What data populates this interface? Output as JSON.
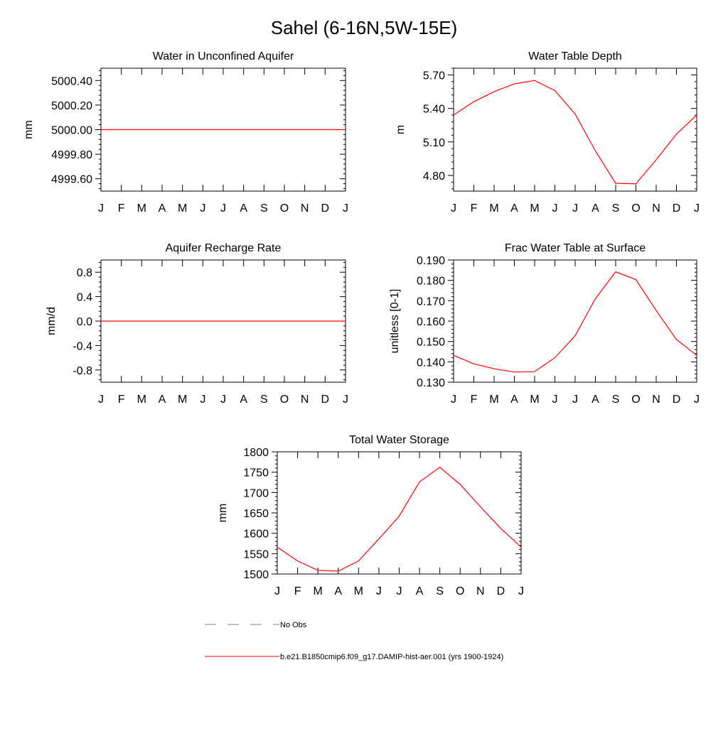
{
  "figure": {
    "title": "Sahel (6-16N,5W-15E)"
  },
  "legend": {
    "entries": [
      {
        "label": "No Obs",
        "style": "dashed",
        "color": "#808080"
      },
      {
        "label": "b.e21.B1850cmip6.f09_g17.DAMIP-hist-aer.001 (yrs 1900-1924)",
        "style": "solid",
        "color": "#ff0000"
      }
    ]
  },
  "chart_data": [
    {
      "type": "line",
      "title": "Water in Unconfined Aquifer",
      "ylabel": "mm",
      "xlabel": "",
      "categories": [
        "J",
        "F",
        "M",
        "A",
        "M",
        "J",
        "J",
        "A",
        "S",
        "O",
        "N",
        "D",
        "J"
      ],
      "ylim": [
        4999.5,
        5000.5
      ],
      "yticks": [
        4999.6,
        4999.8,
        5000.0,
        5000.2,
        5000.4
      ],
      "ytick_labels": [
        "4999.60",
        "4999.80",
        "5000.00",
        "5000.20",
        "5000.40"
      ],
      "series": [
        {
          "color": "#ff0000",
          "values": [
            5000.0,
            5000.0,
            5000.0,
            5000.0,
            5000.0,
            5000.0,
            5000.0,
            5000.0,
            5000.0,
            5000.0,
            5000.0,
            5000.0,
            5000.0
          ]
        }
      ]
    },
    {
      "type": "line",
      "title": "Water Table Depth",
      "ylabel": "m",
      "xlabel": "",
      "categories": [
        "J",
        "F",
        "M",
        "A",
        "M",
        "J",
        "J",
        "A",
        "S",
        "O",
        "N",
        "D",
        "J"
      ],
      "ylim": [
        4.66,
        5.76
      ],
      "yticks": [
        4.8,
        5.1,
        5.4,
        5.7
      ],
      "ytick_labels": [
        "4.80",
        "5.10",
        "5.40",
        "5.70"
      ],
      "series": [
        {
          "color": "#ff0000",
          "values": [
            5.34,
            5.46,
            5.55,
            5.62,
            5.65,
            5.56,
            5.35,
            5.02,
            4.73,
            4.725,
            4.94,
            5.17,
            5.34
          ]
        }
      ]
    },
    {
      "type": "line",
      "title": "Aquifer Recharge Rate",
      "ylabel": "mm/d",
      "xlabel": "",
      "categories": [
        "J",
        "F",
        "M",
        "A",
        "M",
        "J",
        "J",
        "A",
        "S",
        "O",
        "N",
        "D",
        "J"
      ],
      "ylim": [
        -1.0,
        1.0
      ],
      "yticks": [
        -0.8,
        -0.4,
        0.0,
        0.4,
        0.8
      ],
      "ytick_labels": [
        "-0.8",
        "-0.4",
        "0.0",
        "0.4",
        "0.8"
      ],
      "series": [
        {
          "color": "#ff0000",
          "values": [
            0,
            0,
            0,
            0,
            0,
            0,
            0,
            0,
            0,
            0,
            0,
            0,
            0
          ]
        }
      ]
    },
    {
      "type": "line",
      "title": "Frac Water Table at Surface",
      "ylabel": "unitless [0-1]",
      "xlabel": "",
      "categories": [
        "J",
        "F",
        "M",
        "A",
        "M",
        "J",
        "J",
        "A",
        "S",
        "O",
        "N",
        "D",
        "J"
      ],
      "ylim": [
        0.13,
        0.19
      ],
      "yticks": [
        0.13,
        0.14,
        0.15,
        0.16,
        0.17,
        0.18,
        0.19
      ],
      "ytick_labels": [
        "0.130",
        "0.140",
        "0.150",
        "0.160",
        "0.170",
        "0.180",
        "0.190"
      ],
      "series": [
        {
          "color": "#ff0000",
          "values": [
            0.1432,
            0.139,
            0.1366,
            0.135,
            0.1352,
            0.142,
            0.1528,
            0.171,
            0.1842,
            0.1804,
            0.1652,
            0.151,
            0.1432
          ]
        }
      ]
    },
    {
      "type": "line",
      "title": "Total Water Storage",
      "ylabel": "mm",
      "xlabel": "",
      "categories": [
        "J",
        "F",
        "M",
        "A",
        "M",
        "J",
        "J",
        "A",
        "S",
        "O",
        "N",
        "D",
        "J"
      ],
      "ylim": [
        1500,
        1800
      ],
      "yticks": [
        1500,
        1550,
        1600,
        1650,
        1700,
        1750,
        1800
      ],
      "ytick_labels": [
        "1500",
        "1550",
        "1600",
        "1650",
        "1700",
        "1750",
        "1800"
      ],
      "series": [
        {
          "color": "#ff0000",
          "values": [
            1566,
            1532,
            1509,
            1507,
            1532,
            1586,
            1642,
            1726,
            1762,
            1720,
            1665,
            1612,
            1566
          ]
        }
      ]
    }
  ]
}
